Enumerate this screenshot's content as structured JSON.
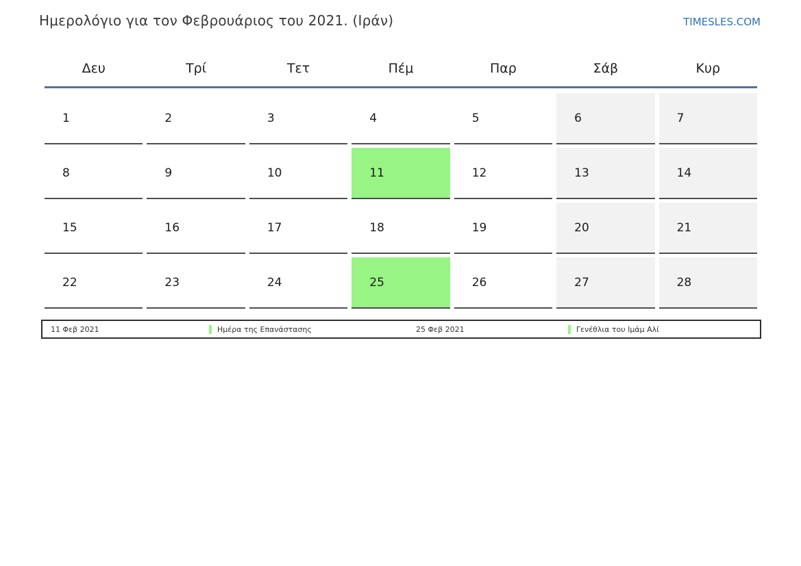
{
  "page": {
    "title": "Ημερολόγιο για τον Φεβρουάριος του 2021. (Ιράν)",
    "brand": "TIMESLES.COM"
  },
  "calendar": {
    "weekdays": [
      "Δευ",
      "Τρί",
      "Τετ",
      "Πέμ",
      "Παρ",
      "Σάβ",
      "Κυρ"
    ],
    "days": [
      {
        "day": "1",
        "type": "normal"
      },
      {
        "day": "2",
        "type": "normal"
      },
      {
        "day": "3",
        "type": "normal"
      },
      {
        "day": "4",
        "type": "normal"
      },
      {
        "day": "5",
        "type": "normal"
      },
      {
        "day": "6",
        "type": "weekend"
      },
      {
        "day": "7",
        "type": "weekend"
      },
      {
        "day": "8",
        "type": "normal"
      },
      {
        "day": "9",
        "type": "normal"
      },
      {
        "day": "10",
        "type": "normal"
      },
      {
        "day": "11",
        "type": "holiday"
      },
      {
        "day": "12",
        "type": "normal"
      },
      {
        "day": "13",
        "type": "weekend"
      },
      {
        "day": "14",
        "type": "weekend"
      },
      {
        "day": "15",
        "type": "normal"
      },
      {
        "day": "16",
        "type": "normal"
      },
      {
        "day": "17",
        "type": "normal"
      },
      {
        "day": "18",
        "type": "normal"
      },
      {
        "day": "19",
        "type": "normal"
      },
      {
        "day": "20",
        "type": "weekend"
      },
      {
        "day": "21",
        "type": "weekend"
      },
      {
        "day": "22",
        "type": "normal"
      },
      {
        "day": "23",
        "type": "normal"
      },
      {
        "day": "24",
        "type": "normal"
      },
      {
        "day": "25",
        "type": "holiday"
      },
      {
        "day": "26",
        "type": "normal"
      },
      {
        "day": "27",
        "type": "weekend"
      },
      {
        "day": "28",
        "type": "weekend"
      }
    ]
  },
  "legend": {
    "entries": [
      {
        "date": "11 Φεβ 2021",
        "name": "Ημέρα της Επανάστασης"
      },
      {
        "date": "25 Φεβ 2021",
        "name": "Γενέθλια του Ιμάμ Αλί"
      }
    ]
  },
  "colors": {
    "holiday_green": "#97f485",
    "weekend_gray": "#f2f2f2",
    "header_rule_blue": "#547198",
    "brand_blue": "#2d73b8"
  }
}
